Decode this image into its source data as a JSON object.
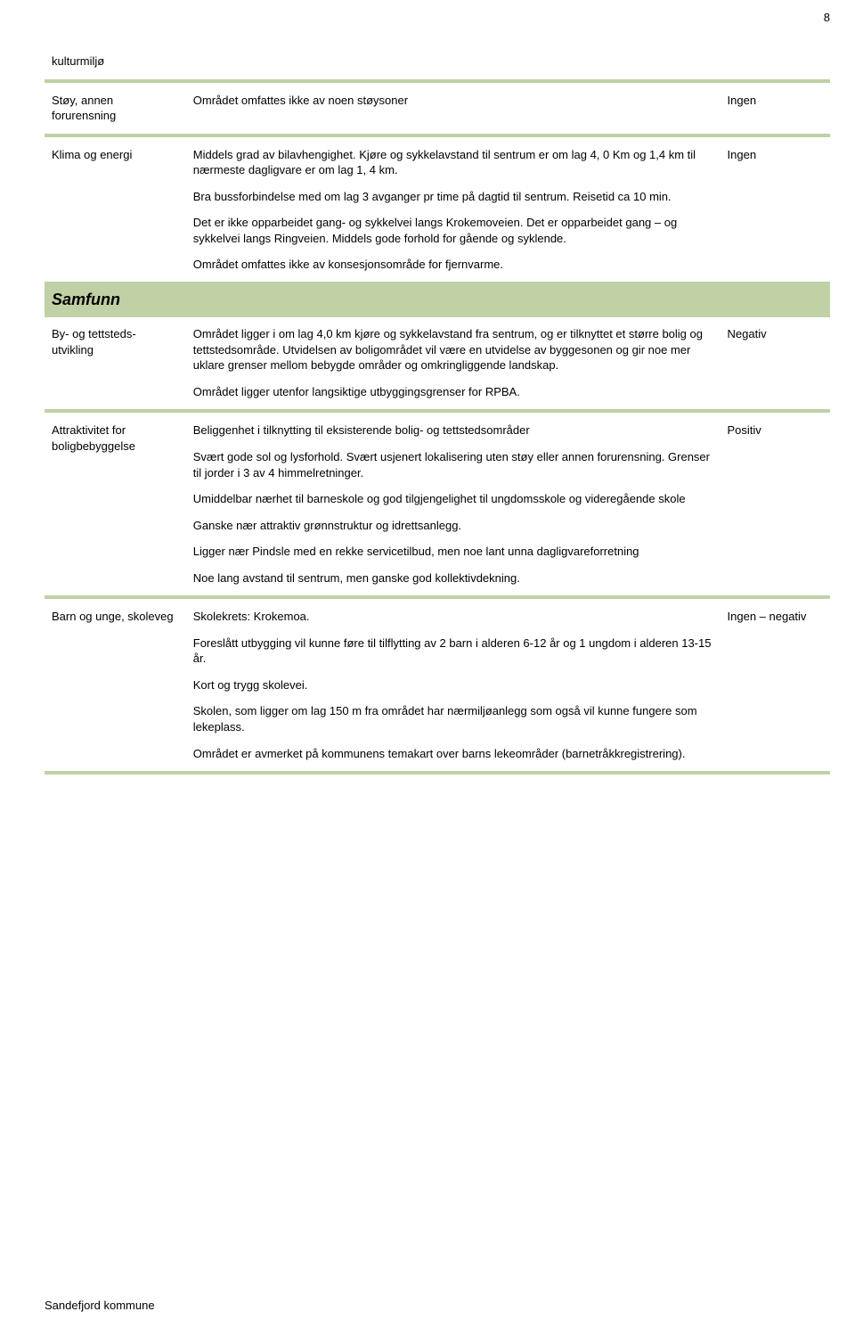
{
  "page_number": "8",
  "colors": {
    "band": "#c0d1a5",
    "text": "#000000",
    "background": "#ffffff"
  },
  "rows": {
    "kulturmiljo": {
      "label": "kulturmiljø"
    },
    "stoy": {
      "label": "Støy, annen forurensning",
      "desc": "Området omfattes ikke av noen støysoner",
      "value": "Ingen"
    },
    "klima": {
      "label": "Klima og energi",
      "p1": "Middels grad av bilavhengighet. Kjøre og sykkelavstand til sentrum er om lag 4, 0 Km og 1,4 km til nærmeste dagligvare er om lag 1, 4 km.",
      "p2": "Bra bussforbindelse med om lag 3 avganger pr time på dagtid til sentrum. Reisetid ca 10 min.",
      "p3": "Det er ikke opparbeidet gang- og sykkelvei langs Krokemoveien. Det er opparbeidet gang – og sykkelvei langs Ringveien. Middels gode forhold for gående og syklende.",
      "p4": "Området omfattes ikke av konsesjonsområde for fjernvarme.",
      "value": "Ingen"
    },
    "samfunn": {
      "title": "Samfunn"
    },
    "byog": {
      "label": "By- og tettsteds-utvikling",
      "p1": "Området ligger i om lag 4,0 km kjøre og sykkelavstand fra sentrum, og er tilknyttet et større bolig og tettstedsområde. Utvidelsen av boligområdet vil være en utvidelse av byggesonen og gir noe mer uklare grenser mellom bebygde områder og omkringliggende landskap.",
      "p2": "Området ligger utenfor langsiktige utbyggingsgrenser for RPBA.",
      "value": "Negativ"
    },
    "attraktivitet": {
      "label": "Attraktivitet for boligbebyggelse",
      "p1": "Beliggenhet i tilknytting til eksisterende bolig- og tettstedsområder",
      "p2": "Svært gode sol og lysforhold. Svært usjenert lokalisering uten støy eller annen forurensning. Grenser til jorder i 3 av 4 himmelretninger.",
      "p3": "Umiddelbar nærhet til barneskole og god tilgjengelighet til ungdomsskole og videregående skole",
      "p4": "Ganske nær attraktiv grønnstruktur og idrettsanlegg.",
      "p5": "Ligger nær Pindsle med en rekke servicetilbud, men noe lant unna dagligvareforretning",
      "p6": "Noe lang avstand til sentrum, men ganske god kollektivdekning.",
      "value": "Positiv"
    },
    "barn": {
      "label": "Barn og unge, skoleveg",
      "p1": "Skolekrets: Krokemoa.",
      "p2": "Foreslått utbygging vil kunne føre til tilflytting av 2 barn i alderen 6-12 år og 1 ungdom i alderen 13-15 år.",
      "p3": "Kort og trygg skolevei.",
      "p4": "Skolen, som ligger om lag 150 m fra området  har nærmiljøanlegg som også vil kunne fungere som lekeplass.",
      "p5": "Området er avmerket på kommunens temakart over barns lekeområder (barnetråkkregistrering).",
      "value": "Ingen – negativ"
    }
  },
  "footer": "Sandefjord kommune"
}
